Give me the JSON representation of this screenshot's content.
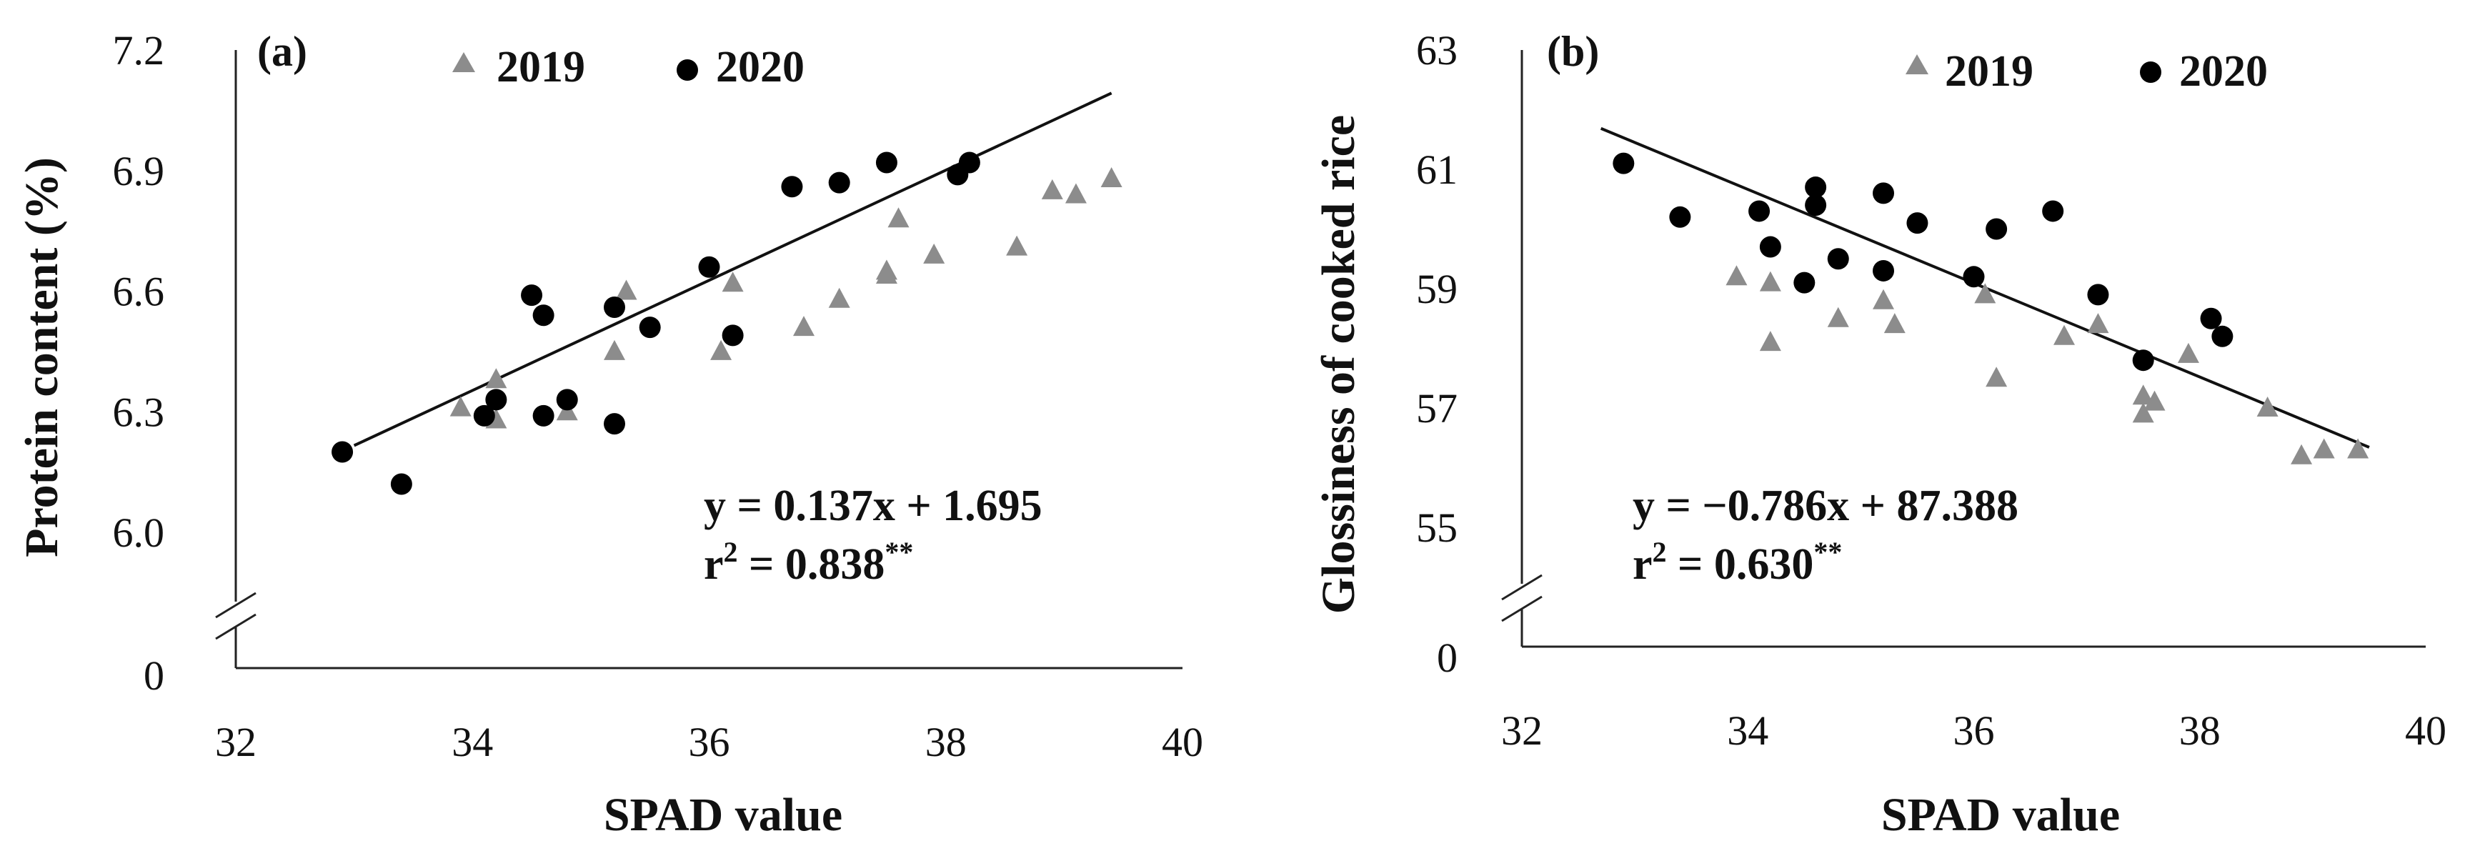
{
  "chart_data": [
    {
      "type": "scatter",
      "panel_label": "(a)",
      "xlabel": "SPAD value",
      "ylabel": "Protein content (%)",
      "xlim": [
        32,
        40
      ],
      "x_ticks": [
        "32",
        "34",
        "36",
        "38",
        "40"
      ],
      "ylim": [
        6.0,
        7.2
      ],
      "y_ticks": [
        "6.0",
        "6.3",
        "6.6",
        "6.9",
        "7.2"
      ],
      "y_break_tick": "0",
      "legend": [
        {
          "name": "2019",
          "marker": "triangle",
          "color": "#8c8c8c"
        },
        {
          "name": "2020",
          "marker": "circle",
          "color": "#000000"
        }
      ],
      "series": [
        {
          "name": "2019",
          "x": [
            33.9,
            34.2,
            34.2,
            34.8,
            35.2,
            35.3,
            36.1,
            36.2,
            36.8,
            37.1,
            37.5,
            37.5,
            37.6,
            37.9,
            38.6,
            38.9,
            39.1,
            39.4
          ],
          "y": [
            6.31,
            6.38,
            6.28,
            6.3,
            6.45,
            6.6,
            6.45,
            6.62,
            6.51,
            6.58,
            6.64,
            6.65,
            6.78,
            6.69,
            6.71,
            6.85,
            6.84,
            6.88
          ]
        },
        {
          "name": "2020",
          "x": [
            32.9,
            33.4,
            34.1,
            34.2,
            34.5,
            34.6,
            34.6,
            34.8,
            35.2,
            35.2,
            35.5,
            36.0,
            36.2,
            36.7,
            37.1,
            37.5,
            38.1,
            38.2
          ],
          "y": [
            6.2,
            6.12,
            6.29,
            6.33,
            6.59,
            6.54,
            6.29,
            6.33,
            6.56,
            6.27,
            6.51,
            6.66,
            6.49,
            6.86,
            6.87,
            6.92,
            6.89,
            6.92
          ]
        }
      ],
      "regression": {
        "slope": 0.137,
        "intercept": 1.695,
        "x_range": [
          33.0,
          39.4
        ]
      },
      "equation": "y = 0.137x + 1.695",
      "r2_prefix": "r",
      "r2_exp": "2",
      "r2_value": " = 0.838",
      "r2_sig": "**"
    },
    {
      "type": "scatter",
      "panel_label": "(b)",
      "xlabel": "SPAD value",
      "ylabel": "Glossiness of cooked rice",
      "xlim": [
        32,
        40
      ],
      "x_ticks": [
        "32",
        "34",
        "36",
        "38",
        "40"
      ],
      "ylim": [
        55,
        63
      ],
      "y_ticks": [
        "55",
        "57",
        "59",
        "61",
        "63"
      ],
      "y_break_tick": "0",
      "legend": [
        {
          "name": "2019",
          "marker": "triangle",
          "color": "#8c8c8c"
        },
        {
          "name": "2020",
          "marker": "circle",
          "color": "#000000"
        }
      ],
      "series": [
        {
          "name": "2019",
          "x": [
            33.9,
            34.2,
            34.2,
            34.8,
            35.2,
            35.3,
            36.1,
            36.2,
            36.8,
            37.1,
            37.5,
            37.5,
            37.6,
            37.9,
            38.6,
            38.9,
            39.1,
            39.4
          ],
          "y": [
            59.2,
            59.1,
            58.1,
            58.5,
            58.8,
            58.4,
            58.9,
            57.5,
            58.2,
            58.4,
            56.9,
            57.2,
            57.1,
            57.9,
            57.0,
            56.2,
            56.3,
            56.3
          ]
        },
        {
          "name": "2020",
          "x": [
            32.9,
            33.4,
            34.1,
            34.2,
            34.5,
            34.6,
            34.6,
            34.8,
            35.2,
            35.2,
            35.5,
            36.0,
            36.2,
            36.7,
            37.1,
            37.5,
            38.1,
            38.2
          ],
          "y": [
            61.1,
            60.2,
            60.3,
            59.7,
            59.1,
            60.7,
            60.4,
            59.5,
            60.6,
            59.3,
            60.1,
            59.2,
            60.0,
            60.3,
            58.9,
            57.8,
            58.5,
            58.2
          ]
        }
      ],
      "regression": {
        "slope": -0.786,
        "intercept": 87.388,
        "x_range": [
          32.7,
          39.5
        ]
      },
      "equation": "y = −0.786x + 87.388",
      "r2_prefix": "r",
      "r2_exp": "2",
      "r2_value": " = 0.630",
      "r2_sig": "**"
    }
  ]
}
